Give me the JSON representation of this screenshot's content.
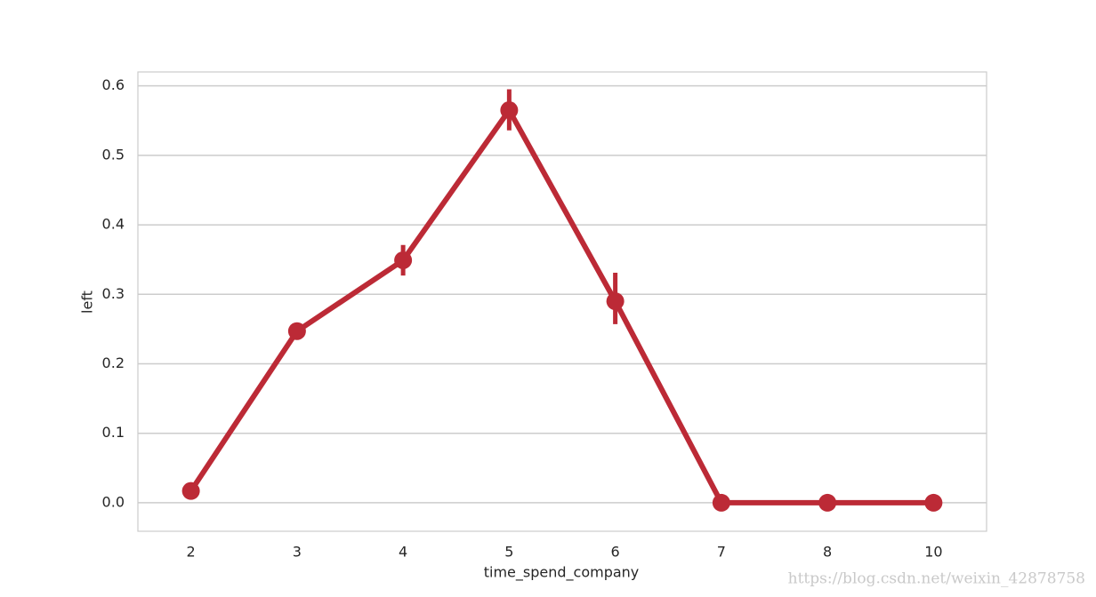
{
  "chart_data": {
    "type": "pointplot",
    "x_label": "time_spend_company",
    "y_label": "left",
    "categories": [
      "2",
      "3",
      "4",
      "5",
      "6",
      "7",
      "8",
      "10"
    ],
    "values": [
      0.017,
      0.247,
      0.349,
      0.565,
      0.29,
      0,
      0,
      0
    ],
    "ci": [
      [
        0.013,
        0.021
      ],
      [
        0.236,
        0.258
      ],
      [
        0.327,
        0.371
      ],
      [
        0.536,
        0.595
      ],
      [
        0.257,
        0.331
      ],
      [
        0,
        0
      ],
      [
        0,
        0
      ],
      [
        0,
        0
      ]
    ],
    "color": "#bc2a36",
    "ylim": [
      -0.041,
      0.62
    ],
    "yticks": [
      {
        "value": 0,
        "label": "0.0"
      },
      0.1,
      0.2,
      0.3,
      0.4,
      0.5,
      0.6
    ],
    "grid": true,
    "watermark": "https://blog.csdn.net/weixin_42878758"
  }
}
